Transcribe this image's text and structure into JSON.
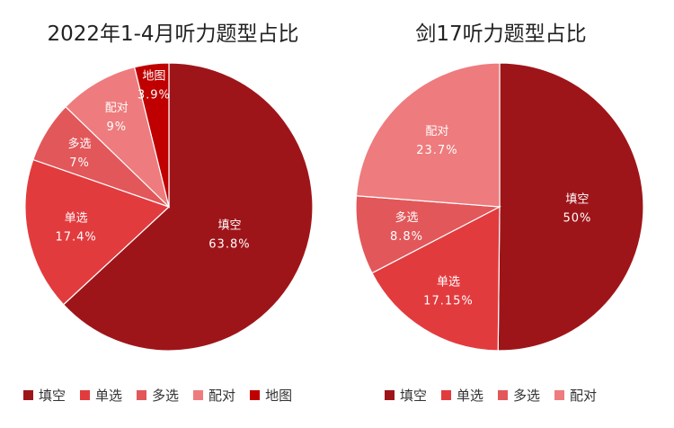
{
  "chart_data": [
    {
      "type": "pie",
      "title": "2022年1-4月听力题型占比",
      "slices": [
        {
          "label": "填空",
          "value": 63.8,
          "display": "63.8%",
          "color": "#9E1519"
        },
        {
          "label": "单选",
          "value": 17.4,
          "display": "17.4%",
          "color": "#E23B3E"
        },
        {
          "label": "多选",
          "value": 7,
          "display": "7%",
          "color": "#E2575A"
        },
        {
          "label": "配对",
          "value": 9,
          "display": "9%",
          "color": "#EE7B7D"
        },
        {
          "label": "地图",
          "value": 3.9,
          "display": "3.9%",
          "color": "#C00000"
        }
      ],
      "legend": [
        "填空",
        "单选",
        "多选",
        "配对",
        "地图"
      ],
      "legend_position": "bottom"
    },
    {
      "type": "pie",
      "title": "剑17听力题型占比",
      "slices": [
        {
          "label": "填空",
          "value": 50,
          "display": "50%",
          "color": "#9E1519"
        },
        {
          "label": "单选",
          "value": 17.15,
          "display": "17.15%",
          "color": "#E23B3E"
        },
        {
          "label": "多选",
          "value": 8.8,
          "display": "8.8%",
          "color": "#E2575A"
        },
        {
          "label": "配对",
          "value": 23.7,
          "display": "23.7%",
          "color": "#EE7B7D"
        }
      ],
      "legend": [
        "填空",
        "单选",
        "多选",
        "配对"
      ],
      "legend_position": "bottom"
    }
  ]
}
